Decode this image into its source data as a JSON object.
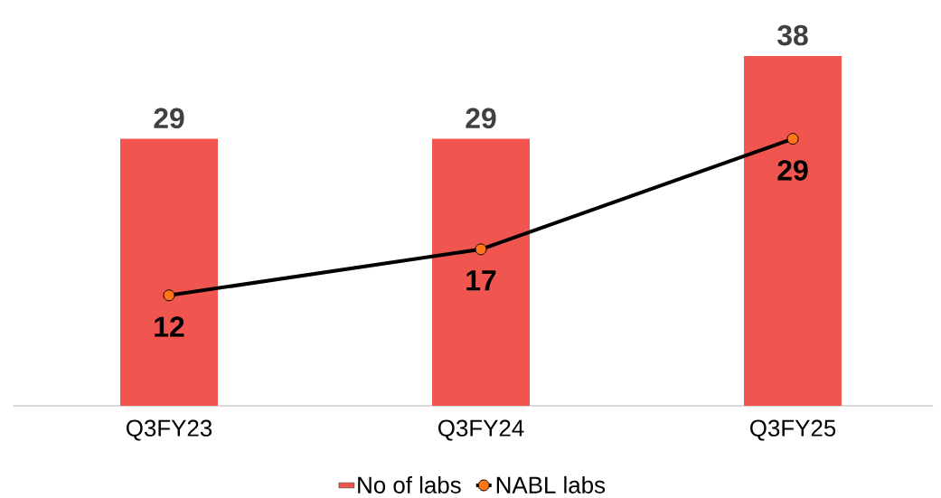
{
  "chart_data": {
    "type": "bar",
    "categories": [
      "Q3FY23",
      "Q3FY24",
      "Q3FY25"
    ],
    "series": [
      {
        "name": "No of labs",
        "color": "#f0564f",
        "values": [
          29,
          29,
          38
        ]
      },
      {
        "name": "NABL labs",
        "type": "line",
        "color": "#000000",
        "marker": "circle",
        "values": [
          12,
          17,
          29
        ]
      }
    ],
    "data_labels": true,
    "legend": "bottom"
  }
}
